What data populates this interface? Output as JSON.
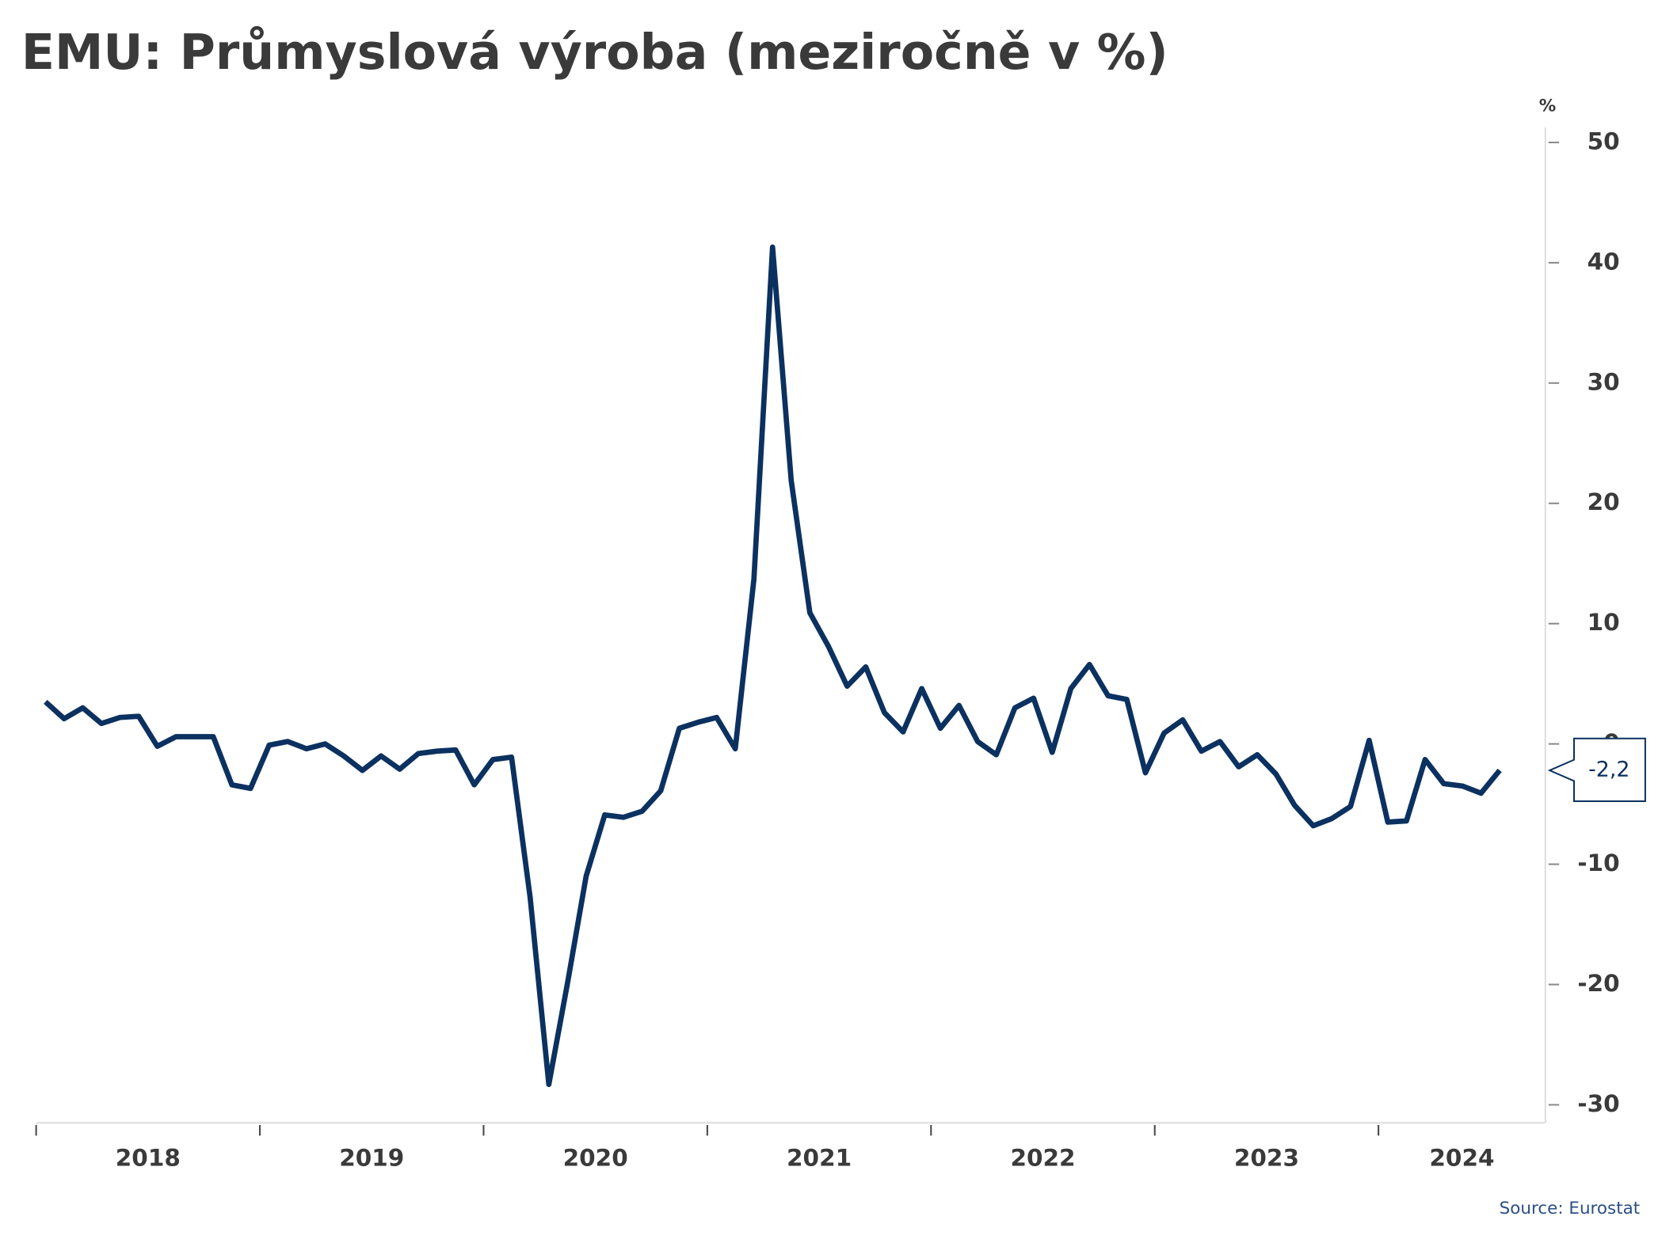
{
  "chart_data": {
    "type": "line",
    "title": "EMU: Průmyslová výroba (meziročně v %)",
    "y_unit": "%",
    "source": "Source: Eurostat",
    "categories": [
      "2018",
      null,
      null,
      null,
      null,
      null,
      null,
      null,
      null,
      null,
      null,
      null,
      "2019",
      null,
      null,
      null,
      null,
      null,
      null,
      null,
      null,
      null,
      null,
      null,
      "2020",
      null,
      null,
      null,
      null,
      null,
      null,
      null,
      null,
      null,
      null,
      null,
      "2021",
      null,
      null,
      null,
      null,
      null,
      null,
      null,
      null,
      null,
      null,
      null,
      "2022",
      null,
      null,
      null,
      null,
      null,
      null,
      null,
      null,
      null,
      null,
      null,
      "2023",
      null,
      null,
      null,
      null,
      null,
      null,
      null,
      null,
      null,
      null,
      null,
      "2024",
      null,
      null,
      null,
      null,
      null,
      null
    ],
    "series": [
      {
        "color": "#0b3160",
        "values": [
          3.5,
          2.1,
          3.0,
          1.7,
          2.2,
          2.3,
          -0.2,
          0.6,
          0.6,
          0.6,
          -3.4,
          -3.7,
          -0.1,
          0.2,
          -0.4,
          0,
          -1.0,
          -2.2,
          -1.0,
          -2.1,
          -0.8,
          -0.6,
          -0.5,
          -3.4,
          -1.3,
          -1.1,
          -12.8,
          -28.3,
          -19.9,
          -11.0,
          -5.9,
          -6.1,
          -5.6,
          -3.9,
          1.3,
          1.8,
          2.2,
          -0.4,
          13.7,
          41.3,
          21.9,
          10.9,
          8.1,
          4.8,
          6.4,
          2.6,
          1.0,
          4.6,
          1.3,
          3.2,
          0.2,
          -0.9,
          3.0,
          3.8,
          -0.7,
          4.6,
          6.6,
          4.0,
          3.7,
          -2.4,
          0.9,
          2.0,
          -0.6,
          0.2,
          -1.9,
          -0.9,
          -2.5,
          -5.1,
          -6.8,
          -6.2,
          -5.2,
          0.3,
          -6.5,
          -6.4,
          -1.3,
          -3.3,
          -3.5,
          -4.1,
          -2.2
        ],
        "value_labels": [
          null,
          null,
          null,
          null,
          null,
          null,
          null,
          null,
          null,
          null,
          null,
          null,
          null,
          null,
          null,
          null,
          null,
          null,
          null,
          null,
          null,
          null,
          null,
          null,
          null,
          null,
          null,
          null,
          null,
          null,
          null,
          null,
          null,
          null,
          null,
          null,
          null,
          null,
          null,
          null,
          null,
          null,
          null,
          null,
          null,
          null,
          null,
          null,
          null,
          null,
          null,
          null,
          null,
          null,
          null,
          null,
          null,
          null,
          null,
          null,
          null,
          null,
          null,
          null,
          null,
          null,
          null,
          null,
          null,
          null,
          null,
          null,
          null,
          null,
          null,
          null,
          null,
          null,
          "-2,2"
        ]
      }
    ],
    "ylim": [
      -32,
      52
    ],
    "yticks": [
      -30,
      -20,
      -10,
      0,
      10,
      20,
      30,
      40,
      50
    ],
    "grid": false
  }
}
